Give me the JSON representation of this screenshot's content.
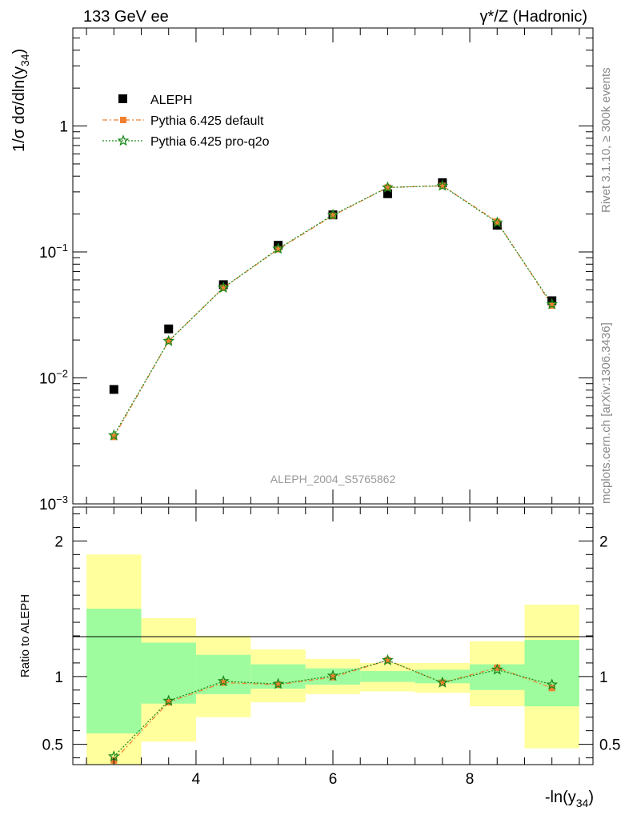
{
  "header": {
    "left_label": "133 GeV ee",
    "right_label": "γ*/Z (Hadronic)"
  },
  "side": {
    "rivet": "Rivet 3.1.10, ≥ 300k events",
    "mcplots": "mcplots.cern.ch [arXiv:1306.3436]"
  },
  "analysis_id": "ALEPH_2004_S5765862",
  "colors": {
    "data": "#000000",
    "pythia_default": "#f08030",
    "pythia_proq2o": "#1a8a1a",
    "band_inner": "#9efc9e",
    "band_outer": "#ffff9e"
  },
  "chart_data": [
    {
      "type": "scatter",
      "ylabel_main": "1/σ  dσ/dln(y",
      "ylabel_sub": "34",
      "ylabel_close": ")",
      "yscale": "log",
      "ylim": [
        0.001,
        6
      ],
      "xlim": [
        2.2,
        9.8
      ],
      "yticks": [
        {
          "v": 0.001,
          "base": "10",
          "exp": "−3"
        },
        {
          "v": 0.01,
          "base": "10",
          "exp": "−2"
        },
        {
          "v": 0.1,
          "base": "10",
          "exp": "−1"
        },
        {
          "v": 1,
          "base": "1",
          "exp": ""
        }
      ],
      "legend_position": "top-left",
      "x": [
        2.8,
        3.6,
        4.4,
        5.2,
        6.0,
        6.8,
        7.6,
        8.4,
        9.2
      ],
      "series": [
        {
          "name": "ALEPH",
          "values": [
            0.0081,
            0.0245,
            0.055,
            0.113,
            0.197,
            0.29,
            0.355,
            0.163,
            0.041
          ]
        },
        {
          "name": "Pythia 6.425 default",
          "values": [
            0.0034,
            0.0196,
            0.052,
            0.105,
            0.194,
            0.325,
            0.335,
            0.174,
            0.0375
          ]
        },
        {
          "name": "Pythia 6.425 pro-q2o",
          "values": [
            0.0035,
            0.0196,
            0.052,
            0.106,
            0.197,
            0.325,
            0.335,
            0.171,
            0.0385
          ]
        }
      ]
    },
    {
      "type": "scatter",
      "ylabel": "Ratio to ALEPH",
      "xlabel_main": "-ln(y",
      "xlabel_sub": "34",
      "xlabel_close": ")",
      "ylim": [
        0.35,
        2.25
      ],
      "xlim": [
        2.2,
        9.8
      ],
      "yticks": [
        0.5,
        1,
        2
      ],
      "xticks": [
        4,
        6,
        8
      ],
      "bins": [
        {
          "lo": 2.4,
          "hi": 3.2,
          "inner": [
            0.58,
            1.5
          ],
          "outer": [
            0.35,
            1.9
          ]
        },
        {
          "lo": 3.2,
          "hi": 4.0,
          "inner": [
            0.8,
            1.25
          ],
          "outer": [
            0.52,
            1.43
          ]
        },
        {
          "lo": 4.0,
          "hi": 4.8,
          "inner": [
            0.87,
            1.16
          ],
          "outer": [
            0.7,
            1.3
          ]
        },
        {
          "lo": 4.8,
          "hi": 5.6,
          "inner": [
            0.91,
            1.09
          ],
          "outer": [
            0.81,
            1.2
          ]
        },
        {
          "lo": 5.6,
          "hi": 6.4,
          "inner": [
            0.94,
            1.06
          ],
          "outer": [
            0.87,
            1.13
          ]
        },
        {
          "lo": 6.4,
          "hi": 7.2,
          "inner": [
            0.96,
            1.04
          ],
          "outer": [
            0.89,
            1.1
          ]
        },
        {
          "lo": 7.2,
          "hi": 8.0,
          "inner": [
            0.95,
            1.05
          ],
          "outer": [
            0.88,
            1.1
          ]
        },
        {
          "lo": 8.0,
          "hi": 8.8,
          "inner": [
            0.9,
            1.09
          ],
          "outer": [
            0.78,
            1.26
          ]
        },
        {
          "lo": 8.8,
          "hi": 9.6,
          "inner": [
            0.78,
            1.27
          ],
          "outer": [
            0.47,
            1.53
          ]
        }
      ],
      "x": [
        2.8,
        3.6,
        4.4,
        5.2,
        6.0,
        6.8,
        7.6,
        8.4,
        9.2
      ],
      "series": [
        {
          "name": "Pythia 6.425 default",
          "values": [
            0.38,
            0.81,
            0.955,
            0.94,
            0.995,
            1.12,
            0.955,
            1.065,
            0.915
          ]
        },
        {
          "name": "Pythia 6.425 pro-q2o",
          "values": [
            0.41,
            0.82,
            0.965,
            0.945,
            1.005,
            1.12,
            0.955,
            1.05,
            0.94
          ]
        }
      ]
    }
  ]
}
